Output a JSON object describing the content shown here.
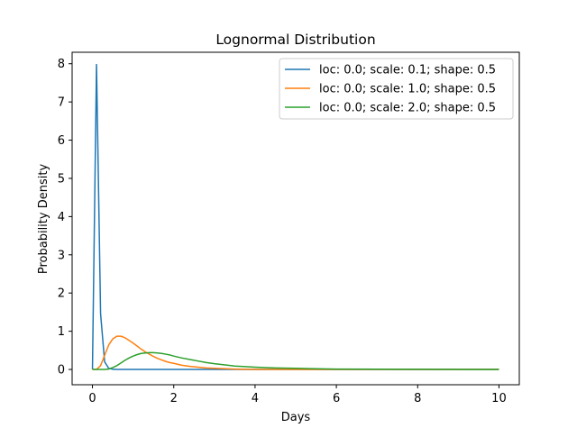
{
  "chart_data": {
    "type": "line",
    "title": "Lognormal Distribution",
    "xlabel": "Days",
    "ylabel": "Probability Density",
    "xlim": [
      -0.5,
      10.5
    ],
    "ylim": [
      -0.4,
      8.3
    ],
    "xticks": [
      0,
      2,
      4,
      6,
      8,
      10
    ],
    "yticks": [
      0,
      1,
      2,
      3,
      4,
      5,
      6,
      7,
      8
    ],
    "grid": false,
    "legend_position": "top-right",
    "x": [
      0.0,
      0.1,
      0.2,
      0.3,
      0.4,
      0.5,
      0.6,
      0.7,
      0.8,
      0.9,
      1.0,
      1.1,
      1.2,
      1.3,
      1.4,
      1.5,
      1.6,
      1.7,
      1.8,
      1.9,
      2.0,
      2.2,
      2.4,
      2.6,
      2.8,
      3.0,
      3.5,
      4.0,
      4.5,
      5.0,
      5.5,
      6.0,
      7.0,
      8.0,
      9.0,
      10.0
    ],
    "series": [
      {
        "name": "loc: 0.0; scale: 0.1; shape: 0.5",
        "color": "#1f77b4",
        "values": [
          0.0,
          7.98,
          1.46,
          0.2,
          0.03,
          0.005,
          0.001,
          0.0,
          0.0,
          0.0,
          0.0,
          0.0,
          0.0,
          0.0,
          0.0,
          0.0,
          0.0,
          0.0,
          0.0,
          0.0,
          0.0,
          0.0,
          0.0,
          0.0,
          0.0,
          0.0,
          0.0,
          0.0,
          0.0,
          0.0,
          0.0,
          0.0,
          0.0,
          0.0,
          0.0,
          0.0
        ]
      },
      {
        "name": "loc: 0.0; scale: 1.0; shape: 0.5",
        "color": "#ff7f0e",
        "values": [
          0.0,
          0.0,
          0.1,
          0.37,
          0.64,
          0.8,
          0.87,
          0.87,
          0.83,
          0.76,
          0.69,
          0.61,
          0.53,
          0.46,
          0.4,
          0.34,
          0.29,
          0.25,
          0.21,
          0.18,
          0.16,
          0.11,
          0.08,
          0.06,
          0.04,
          0.03,
          0.01,
          0.0,
          0.0,
          0.0,
          0.0,
          0.0,
          0.0,
          0.0,
          0.0,
          0.0
        ]
      },
      {
        "name": "loc: 0.0; scale: 2.0; shape: 0.5",
        "color": "#2ca02c",
        "values": [
          0.0,
          0.0,
          0.0,
          0.0,
          0.01,
          0.05,
          0.1,
          0.17,
          0.24,
          0.3,
          0.35,
          0.39,
          0.42,
          0.43,
          0.44,
          0.44,
          0.43,
          0.42,
          0.4,
          0.38,
          0.35,
          0.3,
          0.26,
          0.22,
          0.18,
          0.15,
          0.09,
          0.06,
          0.04,
          0.03,
          0.02,
          0.01,
          0.006,
          0.004,
          0.002,
          0.001
        ]
      }
    ]
  }
}
